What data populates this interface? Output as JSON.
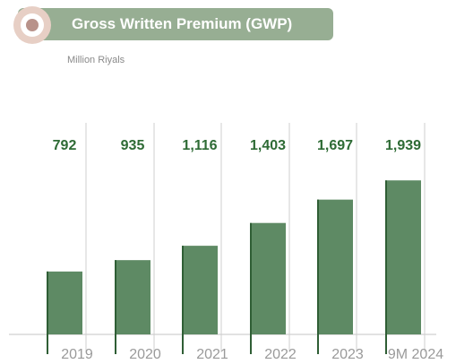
{
  "header": {
    "title": "Gross Written Premium (GWP)",
    "unit": "Million Riyals"
  },
  "colors": {
    "bar": "#5e8a64",
    "bar_edge": "#2f5e35",
    "value_label": "#2e6b35",
    "category_label": "#9a9a9a",
    "gridline": "#cfcfcf",
    "baseline": "#c4c4c4",
    "header_bg": "#97ae93",
    "icon_outer": "#e7cfc5",
    "icon_inner": "#b8928a"
  },
  "chart_data": {
    "type": "bar",
    "title": "Gross Written Premium (GWP)",
    "subtitle": "Million Riyals",
    "categories": [
      "2019",
      "2020",
      "2021",
      "2022",
      "2023",
      "9M 2024"
    ],
    "values": [
      792,
      935,
      1116,
      1403,
      1697,
      1939
    ],
    "value_labels": [
      "792",
      "935",
      "1,116",
      "1,403",
      "1,697",
      "1,939"
    ],
    "xlabel": "",
    "ylabel": "",
    "grid": false,
    "legend": "none"
  }
}
